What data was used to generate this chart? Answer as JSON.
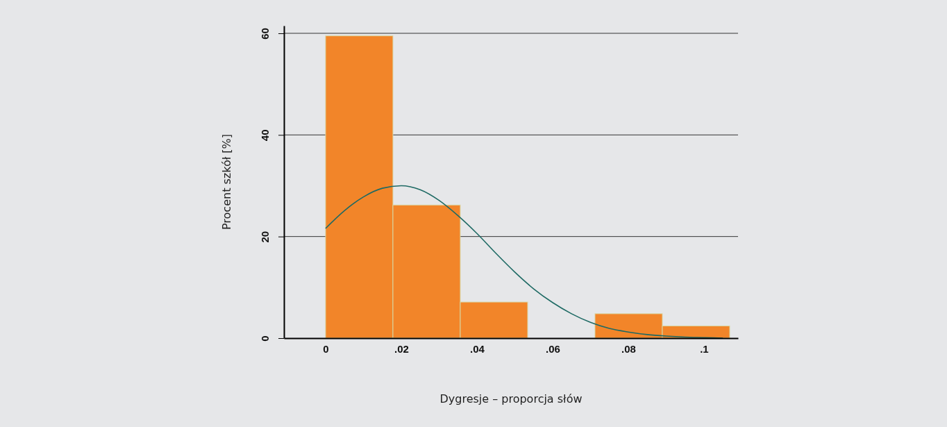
{
  "chart_data": {
    "type": "histogram",
    "xlabel": "Dygresje – proporcja słów",
    "ylabel": "Procent szkół  [%]",
    "bins": [
      0,
      0.0178,
      0.0356,
      0.0534,
      0.0712,
      0.089,
      0.1068
    ],
    "values": [
      59.5,
      26.2,
      7.1,
      0,
      4.8,
      2.4
    ],
    "color": "#f28529",
    "series": [
      {
        "type": "line",
        "color": "#1e6a64",
        "x": [
          0,
          0.005,
          0.01,
          0.015,
          0.02,
          0.025,
          0.03,
          0.035,
          0.04,
          0.045,
          0.05,
          0.055,
          0.06,
          0.065,
          0.07,
          0.075,
          0.08,
          0.085,
          0.09,
          0.095,
          0.1,
          0.105
        ],
        "values": [
          21.6,
          25.1,
          27.8,
          29.5,
          30,
          29.2,
          27.1,
          24.1,
          20.6,
          16.7,
          13,
          9.7,
          7,
          4.8,
          3.1,
          1.9,
          1.2,
          0.7,
          0.4,
          0.2,
          0.1,
          0
        ]
      }
    ],
    "xlim": [
      -0.011,
      0.109
    ],
    "xticks": [
      0,
      {
        "value": 0.02,
        "label": ".02"
      },
      {
        "value": 0.04,
        "label": ".04"
      },
      {
        "value": 0.06,
        "label": ".06"
      },
      {
        "value": 0.08,
        "label": ".08"
      },
      {
        "value": 0.1,
        "label": ".1"
      }
    ],
    "ylim": [
      0,
      61.5
    ],
    "yticks": [
      0,
      20,
      40,
      60
    ],
    "grid": "y"
  }
}
